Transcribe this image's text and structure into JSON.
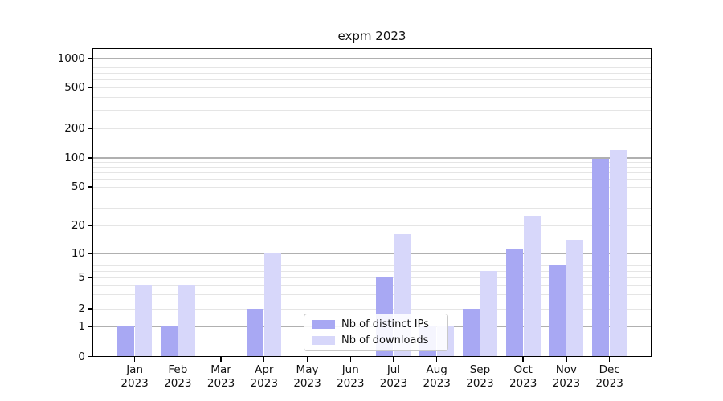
{
  "title": "expm 2023",
  "legend": {
    "items": [
      {
        "label": "Nb of distinct IPs",
        "color": "#a8a8f3"
      },
      {
        "label": "Nb of downloads",
        "color": "#d7d7fa"
      }
    ]
  },
  "chart_data": {
    "type": "bar",
    "title": "expm 2023",
    "xlabel": "",
    "ylabel": "",
    "yscale": "symlog",
    "ylim": [
      0,
      1260
    ],
    "grid": true,
    "legend_position": "lower center inside plot",
    "y_tick_labels": [
      "0",
      "1",
      "2",
      "5",
      "10",
      "20",
      "50",
      "100",
      "200",
      "500",
      "1000"
    ],
    "y_ticks": [
      0,
      1,
      2,
      5,
      10,
      20,
      50,
      100,
      200,
      500,
      1000
    ],
    "x_tick_line1": [
      "Jan",
      "Feb",
      "Mar",
      "Apr",
      "May",
      "Jun",
      "Jul",
      "Aug",
      "Sep",
      "Oct",
      "Nov",
      "Dec"
    ],
    "x_tick_line2": [
      "2023",
      "2023",
      "2023",
      "2023",
      "2023",
      "2023",
      "2023",
      "2023",
      "2023",
      "2023",
      "2023",
      "2023"
    ],
    "categories": [
      "Jan 2023",
      "Feb 2023",
      "Mar 2023",
      "Apr 2023",
      "May 2023",
      "Jun 2023",
      "Jul 2023",
      "Aug 2023",
      "Sep 2023",
      "Oct 2023",
      "Nov 2023",
      "Dec 2023"
    ],
    "series": [
      {
        "name": "Nb of distinct IPs",
        "color": "#a8a8f3",
        "values": [
          1,
          1,
          0,
          2,
          0,
          0,
          5,
          1,
          2,
          11,
          7,
          98
        ]
      },
      {
        "name": "Nb of downloads",
        "color": "#d7d7fa",
        "values": [
          4,
          4,
          0,
          10,
          0,
          0,
          16,
          1,
          6,
          25,
          14,
          120
        ]
      }
    ]
  }
}
